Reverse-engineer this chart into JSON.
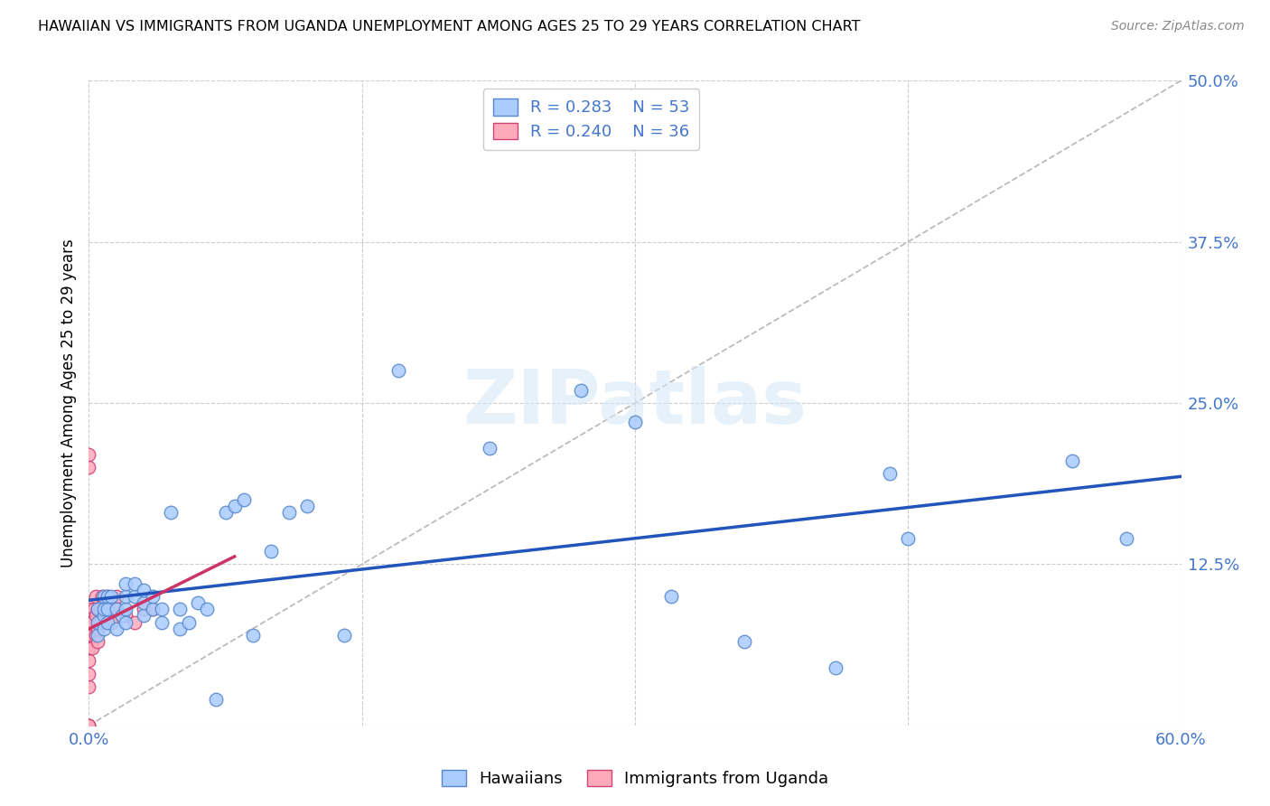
{
  "title": "HAWAIIAN VS IMMIGRANTS FROM UGANDA UNEMPLOYMENT AMONG AGES 25 TO 29 YEARS CORRELATION CHART",
  "source": "Source: ZipAtlas.com",
  "ylabel": "Unemployment Among Ages 25 to 29 years",
  "xlim": [
    0.0,
    0.6
  ],
  "ylim": [
    0.0,
    0.5
  ],
  "xticks": [
    0.0,
    0.15,
    0.3,
    0.45,
    0.6
  ],
  "xtick_labels": [
    "0.0%",
    "",
    "",
    "",
    "60.0%"
  ],
  "ytick_labels_right": [
    "",
    "12.5%",
    "25.0%",
    "37.5%",
    "50.0%"
  ],
  "yticks": [
    0.0,
    0.125,
    0.25,
    0.375,
    0.5
  ],
  "grid_color": "#cccccc",
  "hawaiians_color": "#aaccff",
  "uganda_color": "#ffaabb",
  "hawaiians_edge": "#5588cc",
  "uganda_edge": "#cc4477",
  "trendline_hawaiians_color": "#2255bb",
  "trendline_uganda_color": "#cc3366",
  "diagonal_color": "#bbbbbb",
  "R_hawaiians": 0.283,
  "N_hawaiians": 53,
  "R_uganda": 0.24,
  "N_uganda": 36,
  "label_color": "#4477cc",
  "watermark_text": "ZIPatlas",
  "hawaiians_x": [
    0.005,
    0.005,
    0.005,
    0.008,
    0.008,
    0.008,
    0.008,
    0.01,
    0.01,
    0.01,
    0.012,
    0.015,
    0.015,
    0.018,
    0.02,
    0.02,
    0.02,
    0.02,
    0.025,
    0.025,
    0.03,
    0.03,
    0.03,
    0.035,
    0.035,
    0.04,
    0.04,
    0.045,
    0.05,
    0.05,
    0.055,
    0.06,
    0.065,
    0.07,
    0.075,
    0.08,
    0.085,
    0.09,
    0.1,
    0.11,
    0.12,
    0.14,
    0.17,
    0.22,
    0.27,
    0.3,
    0.32,
    0.36,
    0.41,
    0.44,
    0.45,
    0.54,
    0.57
  ],
  "hawaiians_y": [
    0.07,
    0.08,
    0.09,
    0.075,
    0.085,
    0.09,
    0.1,
    0.08,
    0.09,
    0.1,
    0.1,
    0.075,
    0.09,
    0.085,
    0.08,
    0.09,
    0.1,
    0.11,
    0.1,
    0.11,
    0.085,
    0.095,
    0.105,
    0.09,
    0.1,
    0.08,
    0.09,
    0.165,
    0.075,
    0.09,
    0.08,
    0.095,
    0.09,
    0.02,
    0.165,
    0.17,
    0.175,
    0.07,
    0.135,
    0.165,
    0.17,
    0.07,
    0.275,
    0.215,
    0.26,
    0.235,
    0.1,
    0.065,
    0.045,
    0.195,
    0.145,
    0.205,
    0.145
  ],
  "uganda_x": [
    0.0,
    0.0,
    0.0,
    0.0,
    0.0,
    0.0,
    0.0,
    0.0,
    0.0,
    0.0,
    0.0,
    0.0,
    0.002,
    0.002,
    0.002,
    0.003,
    0.004,
    0.004,
    0.004,
    0.005,
    0.005,
    0.005,
    0.006,
    0.006,
    0.007,
    0.008,
    0.008,
    0.01,
    0.01,
    0.012,
    0.015,
    0.015,
    0.02,
    0.025,
    0.03,
    0.035
  ],
  "uganda_y": [
    0.0,
    0.0,
    0.0,
    0.03,
    0.04,
    0.05,
    0.06,
    0.07,
    0.08,
    0.09,
    0.2,
    0.21,
    0.06,
    0.07,
    0.08,
    0.09,
    0.07,
    0.085,
    0.1,
    0.065,
    0.075,
    0.09,
    0.08,
    0.09,
    0.1,
    0.085,
    0.095,
    0.085,
    0.1,
    0.08,
    0.09,
    0.1,
    0.085,
    0.08,
    0.09,
    0.09
  ]
}
